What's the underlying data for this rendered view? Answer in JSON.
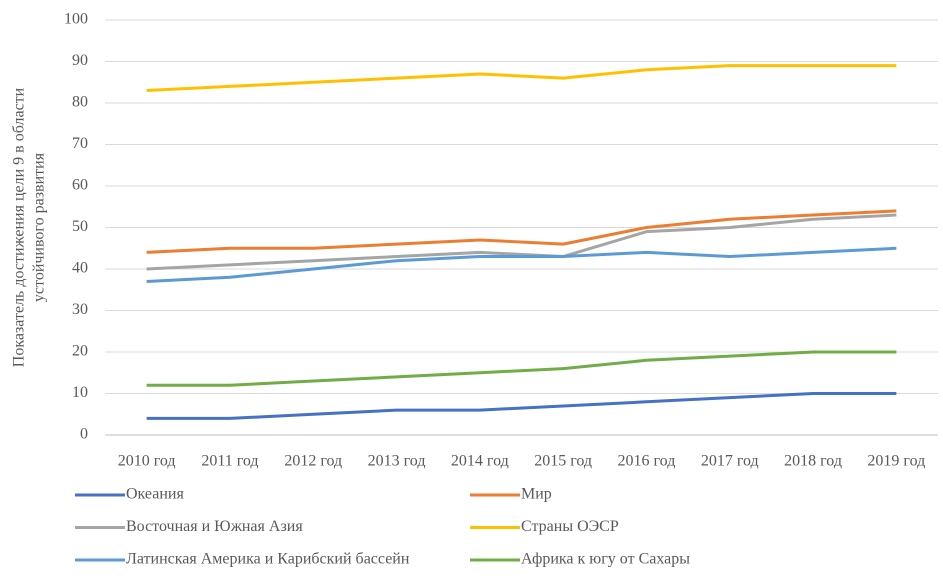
{
  "chart_data": {
    "type": "line",
    "ylabel": [
      "Показатель достижения цели 9 в области",
      "устойчивого развития"
    ],
    "categories": [
      "2010 год",
      "2011 год",
      "2012 год",
      "2013 год",
      "2014 год",
      "2015 год",
      "2016 год",
      "2017 год",
      "2018 год",
      "2019 год"
    ],
    "series": [
      {
        "name": "Океания",
        "color": "#4472c4",
        "values": [
          4,
          4,
          5,
          6,
          6,
          7,
          8,
          9,
          10,
          10
        ]
      },
      {
        "name": "Мир",
        "color": "#ed7d31",
        "values": [
          44,
          45,
          45,
          46,
          47,
          46,
          50,
          52,
          53,
          54
        ]
      },
      {
        "name": "Восточная и Южная Азия",
        "color": "#a5a5a5",
        "values": [
          40,
          41,
          42,
          43,
          44,
          43,
          49,
          50,
          52,
          53
        ]
      },
      {
        "name": "Страны ОЭСР",
        "color": "#ffc000",
        "values": [
          83,
          84,
          85,
          86,
          87,
          86,
          88,
          89,
          89,
          89
        ]
      },
      {
        "name": "Латинская Америка и Карибский бассейн",
        "color": "#5b9bd5",
        "values": [
          37,
          38,
          40,
          42,
          43,
          43,
          44,
          43,
          44,
          45
        ]
      },
      {
        "name": "Африка к югу от Сахары",
        "color": "#70ad47",
        "values": [
          12,
          12,
          13,
          14,
          15,
          16,
          18,
          19,
          20,
          20
        ]
      }
    ],
    "ylim": [
      0,
      100
    ],
    "yticks": [
      0,
      10,
      20,
      30,
      40,
      50,
      60,
      70,
      80,
      90,
      100
    ],
    "grid": true,
    "legend": "bottom"
  }
}
